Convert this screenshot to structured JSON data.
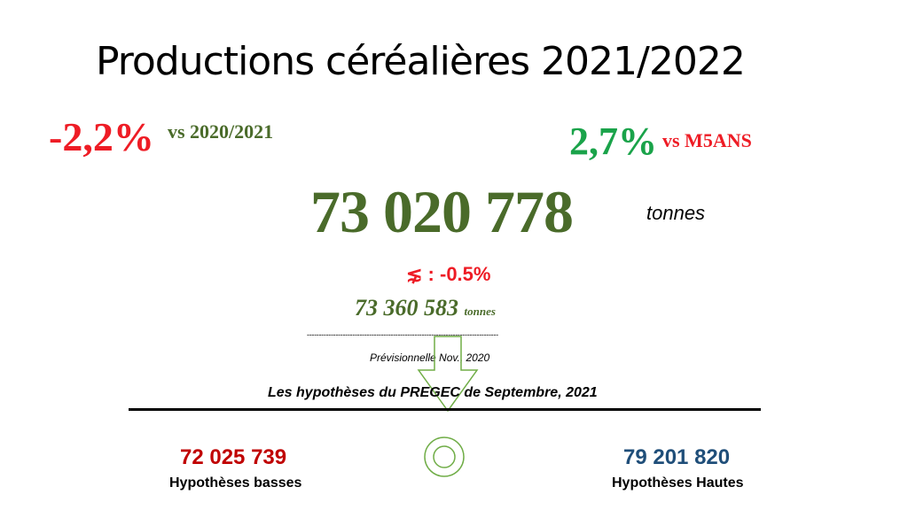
{
  "title": "Productions céréalières 2021/2022",
  "vs_previous": {
    "percent": "-2,2%",
    "label": "vs 2020/2021"
  },
  "vs_5years": {
    "percent": "2,7%",
    "label": "vs M5ANS"
  },
  "total": {
    "value": "73 020 778",
    "unit": "tonnes"
  },
  "comparison": {
    "symbol": "⋦",
    "text": " : -0.5%"
  },
  "forecast": {
    "value": "73 360 583",
    "unit": "tonnes",
    "separator": "--------------------------------------------------------------------------------",
    "caption": "Prévisionnelle Nov., 2020"
  },
  "hypotheses": {
    "title": "Les hypothèses du PREGEC de Septembre, 2021",
    "low": {
      "value": "72 025 739",
      "label": "Hypothèses basses"
    },
    "high": {
      "value": "79 201 820",
      "label": "Hypothèses Hautes"
    }
  },
  "colors": {
    "red": "#ee1c25",
    "dark_red": "#c00000",
    "green": "#1aa34a",
    "olive_green": "#4a6b2a",
    "blue": "#1f4e79",
    "arrow_stroke": "#70ad47"
  },
  "icons": {
    "arrow": "down-arrow-outline-icon",
    "target": "target-circle-icon"
  }
}
